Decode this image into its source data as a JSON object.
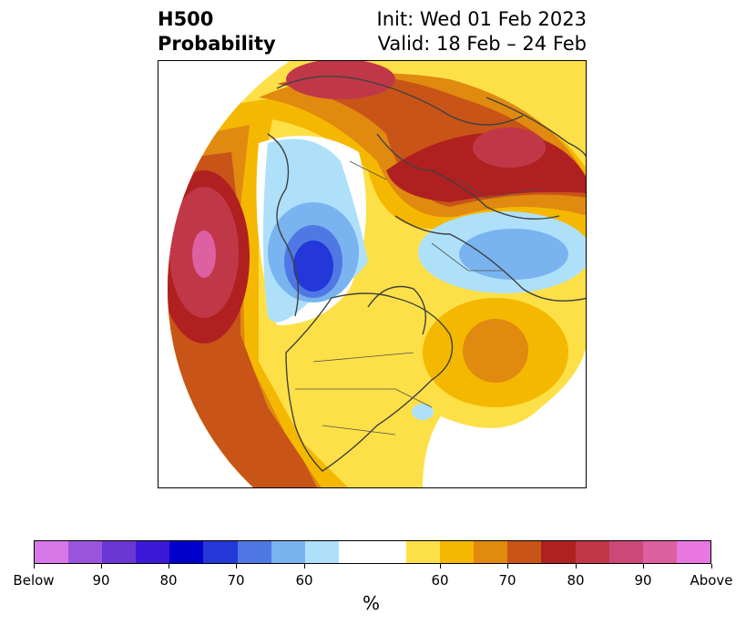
{
  "header": {
    "left_line1": "H500",
    "left_line2": "Probability",
    "right_line1": "Init: Wed 01 Feb 2023",
    "right_line2": "Valid: 18 Feb – 24 Feb"
  },
  "map": {
    "projection": "polar-stereographic",
    "colors": {
      "above_60": "#fde047",
      "above_65": "#f5b800",
      "above_70": "#e08a10",
      "above_75": "#c85418",
      "above_80": "#b02020",
      "above_85": "#c03848",
      "above_90": "#cc4878",
      "above_95": "#dd60a0",
      "below_60": "#aee0fa",
      "below_65": "#7ab4f0",
      "below_70": "#4f78e4",
      "below_75": "#2437d8",
      "border": "#404040"
    }
  },
  "colorbar": {
    "colors": [
      "#d877e8",
      "#9b55dc",
      "#6b36d4",
      "#3b19d8",
      "#0000cc",
      "#2437d8",
      "#4f78e4",
      "#7ab4f0",
      "#aee0fa",
      "#ffffff",
      "#fde047",
      "#f5b800",
      "#e08a10",
      "#c85418",
      "#b02020",
      "#c03848",
      "#cc4878",
      "#dd60a0",
      "#e878e0"
    ],
    "tick_labels": [
      "Below",
      "90",
      "80",
      "70",
      "60",
      "60",
      "70",
      "80",
      "90",
      "Above"
    ],
    "unit": "%"
  }
}
